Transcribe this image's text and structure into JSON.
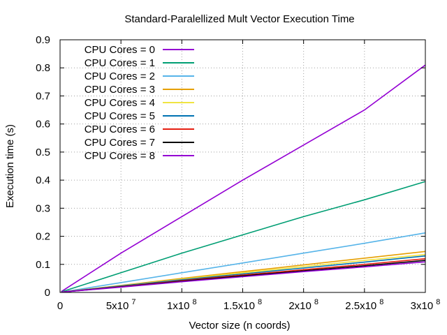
{
  "chart_data": {
    "type": "line",
    "title": "Standard-Paralellized Mult Vector Execution Time",
    "xlabel": "Vector size (n coords)",
    "ylabel": "Execution time (s)",
    "xlim": [
      0,
      300000000
    ],
    "ylim": [
      0,
      0.9
    ],
    "grid": true,
    "legend_position": "top-left",
    "x_ticks": [
      {
        "value": 0,
        "base": "0",
        "exp": ""
      },
      {
        "value": 50000000,
        "base": "5x10",
        "exp": "7"
      },
      {
        "value": 100000000,
        "base": "1x10",
        "exp": "8"
      },
      {
        "value": 150000000,
        "base": "1.5x10",
        "exp": "8"
      },
      {
        "value": 200000000,
        "base": "2x10",
        "exp": "8"
      },
      {
        "value": 250000000,
        "base": "2.5x10",
        "exp": "8"
      },
      {
        "value": 300000000,
        "base": "3x10",
        "exp": "8"
      }
    ],
    "y_ticks": [
      {
        "value": 0,
        "label": "0"
      },
      {
        "value": 0.1,
        "label": "0.1"
      },
      {
        "value": 0.2,
        "label": "0.2"
      },
      {
        "value": 0.3,
        "label": "0.3"
      },
      {
        "value": 0.4,
        "label": "0.4"
      },
      {
        "value": 0.5,
        "label": "0.5"
      },
      {
        "value": 0.6,
        "label": "0.6"
      },
      {
        "value": 0.7,
        "label": "0.7"
      },
      {
        "value": 0.8,
        "label": "0.8"
      },
      {
        "value": 0.9,
        "label": "0.9"
      }
    ],
    "x": [
      1000000,
      50000000,
      100000000,
      150000000,
      200000000,
      250000000,
      300000000
    ],
    "series": [
      {
        "name": "CPU Cores = 0",
        "color": "#9400d3",
        "values": [
          0.003,
          0.14,
          0.27,
          0.4,
          0.525,
          0.65,
          0.81
        ]
      },
      {
        "name": "CPU Cores = 1",
        "color": "#009e73",
        "values": [
          0.002,
          0.07,
          0.14,
          0.205,
          0.27,
          0.33,
          0.395
        ]
      },
      {
        "name": "CPU Cores = 2",
        "color": "#56b4e9",
        "values": [
          0.001,
          0.035,
          0.07,
          0.105,
          0.14,
          0.175,
          0.212
        ]
      },
      {
        "name": "CPU Cores = 3",
        "color": "#e69f00",
        "values": [
          0.001,
          0.025,
          0.05,
          0.074,
          0.098,
          0.122,
          0.146
        ]
      },
      {
        "name": "CPU Cores = 4",
        "color": "#f0e442",
        "values": [
          0.001,
          0.024,
          0.047,
          0.07,
          0.092,
          0.114,
          0.135
        ]
      },
      {
        "name": "CPU Cores = 5",
        "color": "#0072b2",
        "values": [
          0.001,
          0.023,
          0.045,
          0.066,
          0.087,
          0.108,
          0.13
        ]
      },
      {
        "name": "CPU Cores = 6",
        "color": "#e51e10",
        "values": [
          0.001,
          0.021,
          0.042,
          0.062,
          0.081,
          0.1,
          0.12
        ]
      },
      {
        "name": "CPU Cores = 7",
        "color": "#000000",
        "values": [
          0.001,
          0.02,
          0.04,
          0.059,
          0.077,
          0.095,
          0.114
        ]
      },
      {
        "name": "CPU Cores = 8",
        "color": "#9400d3",
        "values": [
          0.001,
          0.019,
          0.038,
          0.056,
          0.074,
          0.091,
          0.109
        ]
      }
    ]
  }
}
